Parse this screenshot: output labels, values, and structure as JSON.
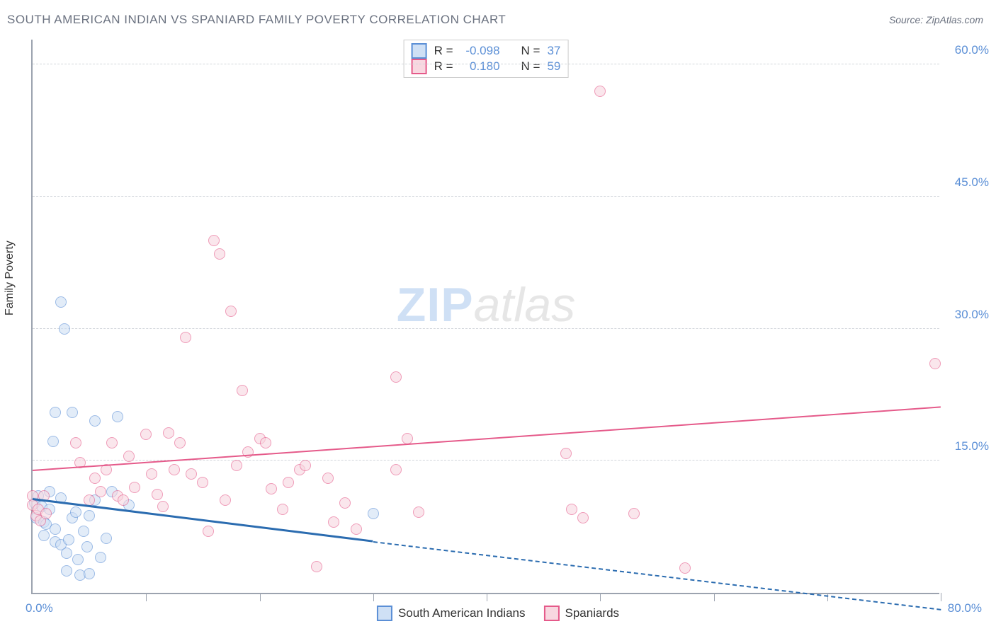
{
  "title": "SOUTH AMERICAN INDIAN VS SPANIARD FAMILY POVERTY CORRELATION CHART",
  "source": "Source: ZipAtlas.com",
  "watermark": {
    "part1": "ZIP",
    "part2": "atlas"
  },
  "chart": {
    "type": "scatter",
    "y_axis": {
      "label": "Family Poverty",
      "ticks": [
        15.0,
        30.0,
        45.0,
        60.0
      ],
      "tick_format_suffix": "%",
      "min": 0,
      "max": 63
    },
    "x_axis": {
      "min": 0,
      "max": 80,
      "min_label": "0.0%",
      "max_label": "80.0%",
      "tick_positions": [
        10,
        20,
        30,
        40,
        50,
        60,
        70,
        80
      ]
    },
    "grid_color": "#d1d5db",
    "axis_color": "#9ca3af",
    "background_color": "#ffffff",
    "tick_label_color": "#5b8fd6",
    "tick_label_fontsize": 17,
    "series": [
      {
        "name": "South American Indians",
        "R": "-0.098",
        "N": "37",
        "marker_fill": "#cfe0f5",
        "marker_stroke": "#5b8fd6",
        "marker_radius": 8,
        "fill_opacity": 0.6,
        "trend": {
          "color": "#2b6cb0",
          "width": 3,
          "start": {
            "x": 0,
            "y": 10.5
          },
          "solid_end": {
            "x": 30,
            "y": 5.7
          },
          "dashed_end": {
            "x": 80,
            "y": -2
          }
        },
        "points": [
          {
            "x": 0.2,
            "y": 10.2
          },
          {
            "x": 0.3,
            "y": 8.5
          },
          {
            "x": 0.5,
            "y": 11
          },
          {
            "x": 0.8,
            "y": 9.8
          },
          {
            "x": 1,
            "y": 8
          },
          {
            "x": 1,
            "y": 6.5
          },
          {
            "x": 1.2,
            "y": 7.8
          },
          {
            "x": 1.5,
            "y": 9.5
          },
          {
            "x": 1.5,
            "y": 11.5
          },
          {
            "x": 1.8,
            "y": 17.2
          },
          {
            "x": 2,
            "y": 7.2
          },
          {
            "x": 2,
            "y": 5.8
          },
          {
            "x": 2,
            "y": 20.5
          },
          {
            "x": 2.5,
            "y": 5.5
          },
          {
            "x": 2.5,
            "y": 10.8
          },
          {
            "x": 2.5,
            "y": 33
          },
          {
            "x": 2.8,
            "y": 30
          },
          {
            "x": 3,
            "y": 4.5
          },
          {
            "x": 3,
            "y": 2.5
          },
          {
            "x": 3.2,
            "y": 6
          },
          {
            "x": 3.5,
            "y": 20.5
          },
          {
            "x": 3.5,
            "y": 8.5
          },
          {
            "x": 3.8,
            "y": 9.2
          },
          {
            "x": 4,
            "y": 3.8
          },
          {
            "x": 4.2,
            "y": 2
          },
          {
            "x": 4.5,
            "y": 7
          },
          {
            "x": 4.8,
            "y": 5.2
          },
          {
            "x": 5,
            "y": 8.8
          },
          {
            "x": 5,
            "y": 2.2
          },
          {
            "x": 5.5,
            "y": 19.5
          },
          {
            "x": 5.5,
            "y": 10.5
          },
          {
            "x": 6,
            "y": 4
          },
          {
            "x": 6.5,
            "y": 6.2
          },
          {
            "x": 7,
            "y": 11.5
          },
          {
            "x": 7.5,
            "y": 20
          },
          {
            "x": 8.5,
            "y": 10
          },
          {
            "x": 30,
            "y": 9
          }
        ]
      },
      {
        "name": "Spaniards",
        "R": "0.180",
        "N": "59",
        "marker_fill": "#f8d7e0",
        "marker_stroke": "#e55a8a",
        "marker_radius": 8,
        "fill_opacity": 0.6,
        "trend": {
          "color": "#e55a8a",
          "width": 2,
          "start": {
            "x": 0,
            "y": 13.8
          },
          "solid_end": {
            "x": 80,
            "y": 21
          },
          "dashed_end": null
        },
        "points": [
          {
            "x": 0,
            "y": 11
          },
          {
            "x": 0,
            "y": 10
          },
          {
            "x": 0.3,
            "y": 8.8
          },
          {
            "x": 0.5,
            "y": 9.5
          },
          {
            "x": 0.7,
            "y": 8.2
          },
          {
            "x": 1,
            "y": 11
          },
          {
            "x": 1.2,
            "y": 9
          },
          {
            "x": 3.8,
            "y": 17
          },
          {
            "x": 4.2,
            "y": 14.8
          },
          {
            "x": 5,
            "y": 10.5
          },
          {
            "x": 5.5,
            "y": 13
          },
          {
            "x": 6,
            "y": 11.5
          },
          {
            "x": 6.5,
            "y": 14
          },
          {
            "x": 7,
            "y": 17
          },
          {
            "x": 7.5,
            "y": 11
          },
          {
            "x": 8,
            "y": 10.5
          },
          {
            "x": 8.5,
            "y": 15.5
          },
          {
            "x": 9,
            "y": 12
          },
          {
            "x": 10,
            "y": 18
          },
          {
            "x": 10.5,
            "y": 13.5
          },
          {
            "x": 11,
            "y": 11.2
          },
          {
            "x": 11.5,
            "y": 9.8
          },
          {
            "x": 12,
            "y": 18.2
          },
          {
            "x": 12.5,
            "y": 14
          },
          {
            "x": 13,
            "y": 17
          },
          {
            "x": 13.5,
            "y": 29
          },
          {
            "x": 14,
            "y": 13.5
          },
          {
            "x": 15,
            "y": 12.5
          },
          {
            "x": 15.5,
            "y": 7
          },
          {
            "x": 16,
            "y": 40
          },
          {
            "x": 16.5,
            "y": 38.5
          },
          {
            "x": 17,
            "y": 10.5
          },
          {
            "x": 17.5,
            "y": 32
          },
          {
            "x": 18,
            "y": 14.5
          },
          {
            "x": 18.5,
            "y": 23
          },
          {
            "x": 19,
            "y": 16
          },
          {
            "x": 20,
            "y": 17.5
          },
          {
            "x": 20.5,
            "y": 17
          },
          {
            "x": 21,
            "y": 11.8
          },
          {
            "x": 22,
            "y": 9.5
          },
          {
            "x": 22.5,
            "y": 12.5
          },
          {
            "x": 23.5,
            "y": 14
          },
          {
            "x": 24,
            "y": 14.5
          },
          {
            "x": 25,
            "y": 3
          },
          {
            "x": 26,
            "y": 13
          },
          {
            "x": 26.5,
            "y": 8
          },
          {
            "x": 27.5,
            "y": 10.2
          },
          {
            "x": 28.5,
            "y": 7.2
          },
          {
            "x": 32,
            "y": 24.5
          },
          {
            "x": 32,
            "y": 14
          },
          {
            "x": 33,
            "y": 17.5
          },
          {
            "x": 34,
            "y": 9.2
          },
          {
            "x": 47,
            "y": 15.8
          },
          {
            "x": 47.5,
            "y": 9.5
          },
          {
            "x": 48.5,
            "y": 8.5
          },
          {
            "x": 50,
            "y": 57
          },
          {
            "x": 53,
            "y": 9
          },
          {
            "x": 57.5,
            "y": 2.8
          },
          {
            "x": 79.5,
            "y": 26
          }
        ]
      }
    ],
    "legend_top": {
      "R_label": "R =",
      "N_label": "N =",
      "text_color": "#333",
      "value_color": "#5b8fd6"
    },
    "legend_bottom": {
      "items": [
        "South American Indians",
        "Spaniards"
      ]
    }
  }
}
